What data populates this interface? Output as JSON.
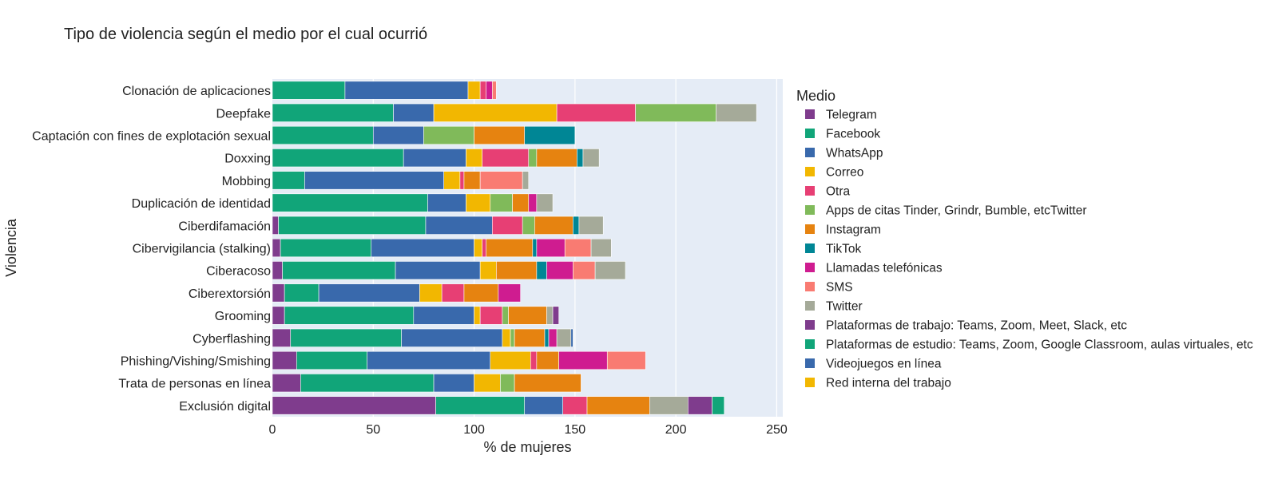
{
  "chart_data": {
    "type": "bar",
    "orientation": "horizontal",
    "stacked": true,
    "title": "Tipo de violencia según el medio por el cual ocurrió",
    "xlabel": "% de mujeres",
    "ylabel": "Violencia",
    "xlim": [
      0,
      253
    ],
    "xticks": [
      0,
      50,
      100,
      150,
      200,
      250
    ],
    "grid": true,
    "legend": {
      "title": "Medio",
      "position": "right"
    },
    "categories": [
      "Clonación de aplicaciones",
      "Deepfake",
      "Captación con fines de explotación sexual",
      "Doxxing",
      "Mobbing",
      "Duplicación de identidad",
      "Ciberdifamación",
      "Cibervigilancia (stalking)",
      "Ciberacoso",
      "Ciberextorsión",
      "Grooming",
      "Cyberflashing",
      "Phishing/Vishing/Smishing",
      "Trata de personas en línea",
      "Exclusión digital"
    ],
    "series": [
      {
        "name": "Telegram",
        "color": "#7f3c8d",
        "values": [
          0,
          0,
          0,
          0,
          0,
          0,
          3,
          4,
          5,
          6,
          6,
          9,
          12,
          14,
          81
        ]
      },
      {
        "name": "Facebook",
        "color": "#11a579",
        "values": [
          36,
          60,
          50,
          65,
          16,
          77,
          73,
          45,
          56,
          17,
          64,
          55,
          35,
          66,
          44
        ]
      },
      {
        "name": "WhatsApp",
        "color": "#3969ac",
        "values": [
          61,
          20,
          25,
          31,
          69,
          19,
          33,
          51,
          42,
          50,
          30,
          50,
          61,
          20,
          19
        ]
      },
      {
        "name": "Correo",
        "color": "#f2b701",
        "values": [
          6,
          61,
          0,
          8,
          8,
          12,
          0,
          4,
          8,
          11,
          3,
          4,
          20,
          13,
          0
        ]
      },
      {
        "name": "Otra",
        "color": "#e73f74",
        "values": [
          3,
          39,
          0,
          23,
          2,
          0,
          15,
          2,
          0,
          11,
          11,
          0,
          3,
          0,
          12
        ]
      },
      {
        "name": "Apps de citas Tinder, Grindr, Bumble, etcTwitter",
        "color": "#80ba5a",
        "values": [
          0,
          40,
          25,
          4,
          0,
          11,
          6,
          0,
          0,
          0,
          3,
          2,
          0,
          7,
          0
        ]
      },
      {
        "name": "Instagram",
        "color": "#e68310",
        "values": [
          0,
          0,
          25,
          20,
          8,
          8,
          19,
          23,
          20,
          17,
          19,
          15,
          11,
          33,
          31
        ]
      },
      {
        "name": "TikTok",
        "color": "#008695",
        "values": [
          0,
          0,
          25,
          3,
          0,
          0,
          3,
          2,
          5,
          0,
          0,
          2,
          0,
          0,
          0
        ]
      },
      {
        "name": "Llamadas telefónicas",
        "color": "#cf1c90",
        "values": [
          3,
          0,
          0,
          0,
          0,
          4,
          0,
          14,
          13,
          11,
          0,
          4,
          24,
          0,
          0
        ]
      },
      {
        "name": "SMS",
        "color": "#f97b72",
        "values": [
          2,
          0,
          0,
          0,
          21,
          0,
          0,
          13,
          11,
          0,
          0,
          0,
          19,
          0,
          0
        ]
      },
      {
        "name": "Twitter",
        "color": "#a5aa99",
        "values": [
          0,
          20,
          0,
          8,
          3,
          8,
          12,
          10,
          15,
          0,
          3,
          7,
          0,
          0,
          19
        ]
      },
      {
        "name": "Plataformas de trabajo: Teams, Zoom, Meet, Slack, etc",
        "color": "#7f3c8d",
        "values": [
          0,
          0,
          0,
          0,
          0,
          0,
          0,
          0,
          0,
          0,
          3,
          0,
          0,
          0,
          12
        ]
      },
      {
        "name": "Plataformas de estudio: Teams, Zoom, Google Classroom, aulas virtuales, etc",
        "color": "#11a579",
        "values": [
          0,
          0,
          0,
          0,
          0,
          0,
          0,
          0,
          0,
          0,
          0,
          0,
          0,
          0,
          6
        ]
      },
      {
        "name": "Videojuegos en línea",
        "color": "#3969ac",
        "values": [
          0,
          0,
          0,
          0,
          0,
          0,
          0,
          0,
          0,
          0,
          0,
          1,
          0,
          0,
          0
        ]
      },
      {
        "name": "Red interna del trabajo",
        "color": "#f2b701",
        "values": [
          0,
          0,
          0,
          0,
          0,
          0,
          0,
          0,
          0,
          0,
          0,
          0,
          0,
          0,
          0
        ]
      }
    ]
  }
}
